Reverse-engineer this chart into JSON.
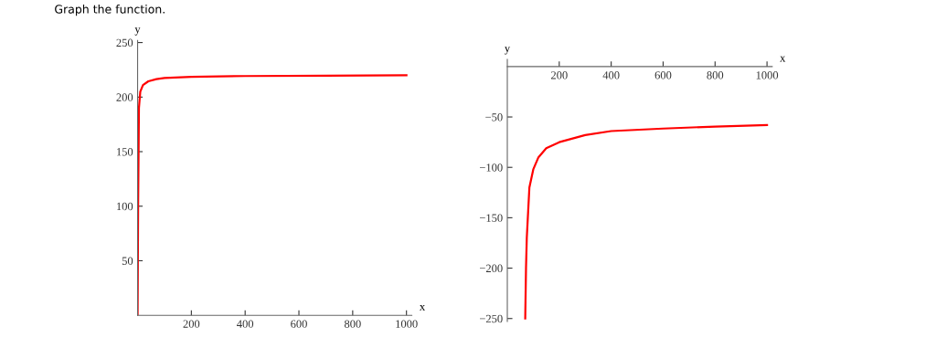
{
  "chart_data": [
    {
      "type": "line",
      "title": "Graph the function.",
      "xlabel": "x",
      "ylabel": "y",
      "xlim": [
        0,
        1020
      ],
      "ylim": [
        0,
        252
      ],
      "xticks": [
        200,
        400,
        600,
        800,
        1000
      ],
      "yticks": [
        50,
        100,
        150,
        200,
        250
      ],
      "grid": false,
      "legend": false,
      "marker": "none",
      "line_style": "solid",
      "series": [
        {
          "color": "#ff0000",
          "x": [
            0,
            2,
            5,
            10,
            20,
            40,
            70,
            100,
            200,
            400,
            700,
            1000
          ],
          "values": [
            0,
            100,
            190,
            205,
            211,
            214.5,
            216.5,
            217.5,
            218.5,
            219.3,
            219.6,
            220
          ]
        }
      ]
    },
    {
      "type": "line",
      "xlabel": "x",
      "ylabel": "y",
      "xlim": [
        0,
        1020
      ],
      "ylim": [
        -253,
        7
      ],
      "xticks": [
        200,
        400,
        600,
        800,
        1000
      ],
      "yticks": [
        {
          "value": -50,
          "label": "−50"
        },
        {
          "value": -100,
          "label": "−100"
        },
        {
          "value": -150,
          "label": "−150"
        },
        {
          "value": -200,
          "label": "−200"
        },
        {
          "value": -250,
          "label": "−250"
        }
      ],
      "grid": false,
      "legend": false,
      "marker": "none",
      "line_style": "solid",
      "series": [
        {
          "color": "#ff0000",
          "x": [
            69,
            72,
            75,
            85,
            100,
            120,
            150,
            200,
            300,
            400,
            600,
            800,
            1000
          ],
          "values": [
            -250,
            -200,
            -170,
            -120,
            -102,
            -90,
            -81,
            -75,
            -68,
            -64,
            -61.5,
            -59.5,
            -58
          ]
        }
      ]
    }
  ]
}
